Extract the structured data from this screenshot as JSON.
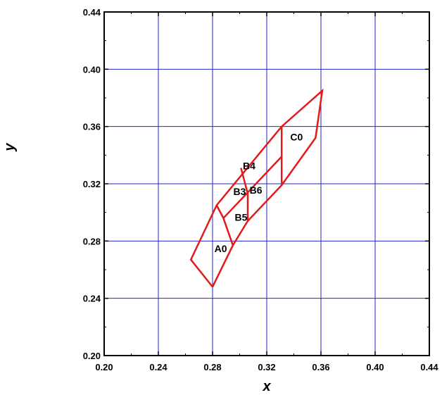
{
  "chart_data": {
    "type": "line",
    "title": "",
    "xlabel": "x",
    "ylabel": "y",
    "xlim": [
      0.2,
      0.44
    ],
    "ylim": [
      0.2,
      0.44
    ],
    "x_ticks": [
      "0.20",
      "0.24",
      "0.28",
      "0.32",
      "0.36",
      "0.40",
      "0.44"
    ],
    "y_ticks": [
      "0.20",
      "0.24",
      "0.28",
      "0.32",
      "0.36",
      "0.40",
      "0.44"
    ],
    "grid": true,
    "colors": {
      "grid": "#2323c8",
      "series": "#e31a1c",
      "axis": "#000000"
    },
    "polylines": [
      {
        "points": [
          [
            0.28,
            0.248
          ],
          [
            0.264,
            0.267
          ],
          [
            0.283,
            0.305
          ],
          [
            0.331,
            0.36
          ],
          [
            0.361,
            0.385
          ],
          [
            0.356,
            0.352
          ],
          [
            0.331,
            0.319
          ],
          [
            0.306,
            0.294
          ],
          [
            0.295,
            0.277
          ],
          [
            0.28,
            0.248
          ]
        ]
      },
      {
        "points": [
          [
            0.283,
            0.305
          ],
          [
            0.288,
            0.296
          ],
          [
            0.295,
            0.277
          ]
        ]
      },
      {
        "points": [
          [
            0.288,
            0.296
          ],
          [
            0.331,
            0.339
          ],
          [
            0.331,
            0.36
          ]
        ]
      },
      {
        "points": [
          [
            0.331,
            0.339
          ],
          [
            0.331,
            0.319
          ]
        ]
      },
      {
        "points": [
          [
            0.301,
            0.331
          ],
          [
            0.306,
            0.313
          ],
          [
            0.306,
            0.294
          ]
        ]
      }
    ],
    "labels": [
      {
        "text": "A0",
        "x": 0.286,
        "y": 0.274
      },
      {
        "text": "B5",
        "x": 0.301,
        "y": 0.296
      },
      {
        "text": "B3",
        "x": 0.3,
        "y": 0.314
      },
      {
        "text": "B6",
        "x": 0.312,
        "y": 0.315
      },
      {
        "text": "B4",
        "x": 0.307,
        "y": 0.332
      },
      {
        "text": "C0",
        "x": 0.342,
        "y": 0.352
      }
    ]
  }
}
